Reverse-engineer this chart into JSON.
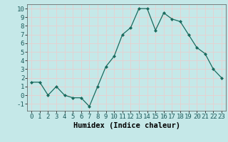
{
  "x": [
    0,
    1,
    2,
    3,
    4,
    5,
    6,
    7,
    8,
    9,
    10,
    11,
    12,
    13,
    14,
    15,
    16,
    17,
    18,
    19,
    20,
    21,
    22,
    23
  ],
  "y": [
    1.5,
    1.5,
    0,
    1,
    0,
    -0.3,
    -0.3,
    -1.3,
    1,
    3.3,
    4.5,
    7,
    7.8,
    10,
    10,
    7.5,
    9.5,
    8.8,
    8.5,
    7,
    5.5,
    4.8,
    3,
    2
  ],
  "line_color": "#1a6b5e",
  "marker": "D",
  "marker_size": 2.0,
  "background_color": "#c5e8e8",
  "grid_color": "#e8d0d0",
  "xlabel": "Humidex (Indice chaleur)",
  "ylim": [
    -1.8,
    10.5
  ],
  "xlim": [
    -0.5,
    23.5
  ],
  "yticks": [
    -1,
    0,
    1,
    2,
    3,
    4,
    5,
    6,
    7,
    8,
    9,
    10
  ],
  "xticks": [
    0,
    1,
    2,
    3,
    4,
    5,
    6,
    7,
    8,
    9,
    10,
    11,
    12,
    13,
    14,
    15,
    16,
    17,
    18,
    19,
    20,
    21,
    22,
    23
  ],
  "xlabel_fontsize": 7.5,
  "tick_fontsize": 6.5
}
